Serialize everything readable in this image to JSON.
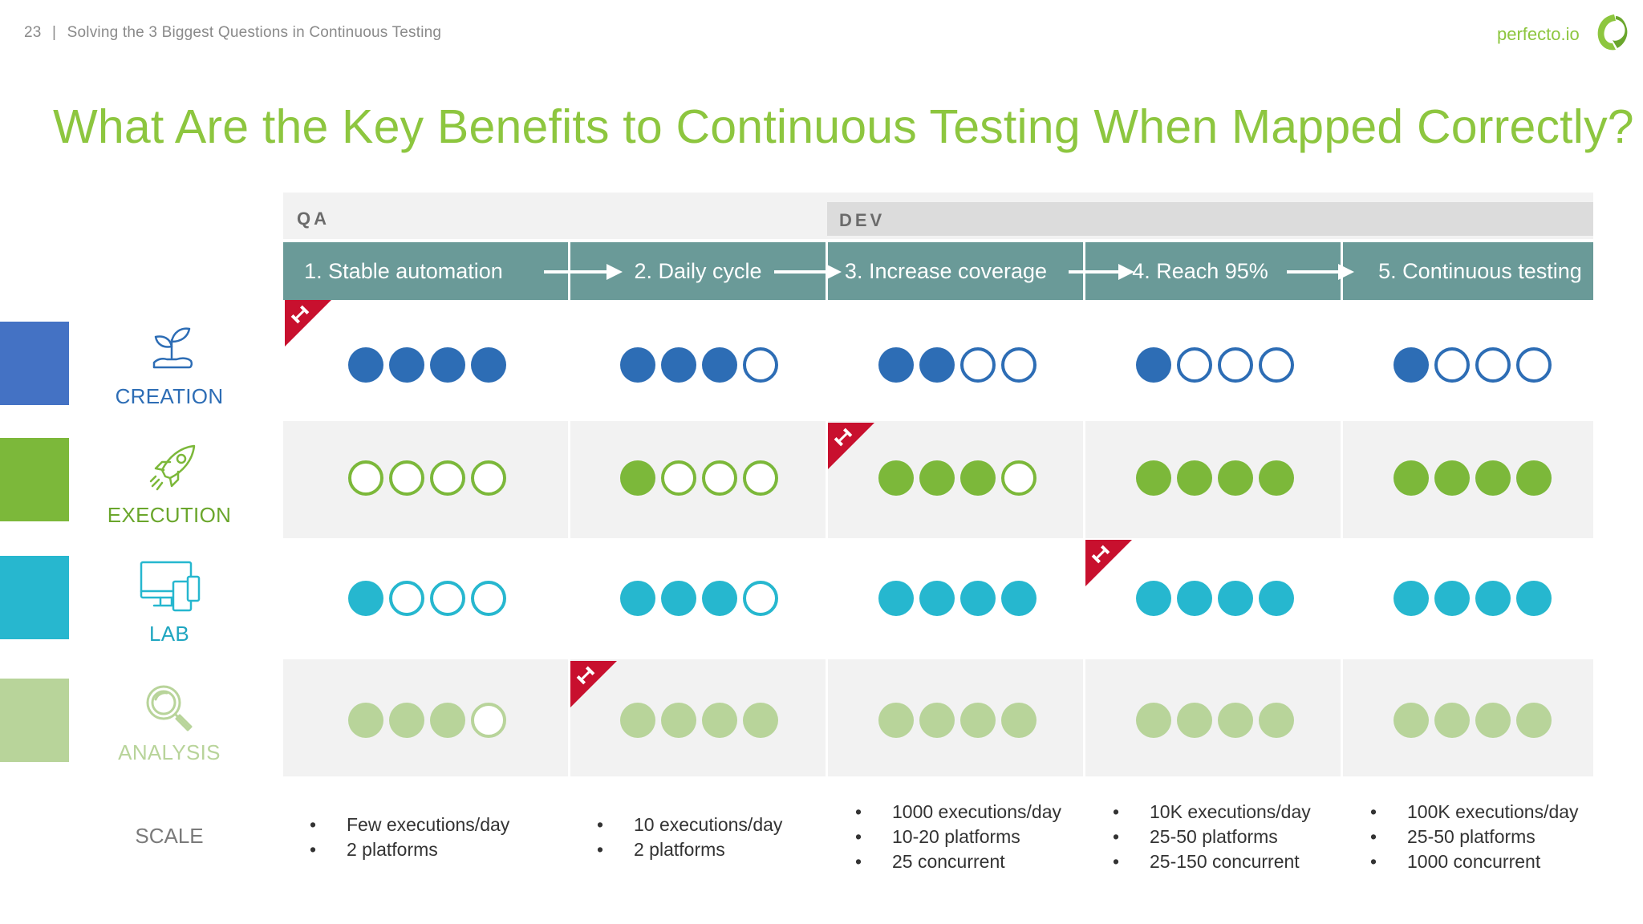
{
  "header": {
    "page_number": "23",
    "separator": "|",
    "deck_title": "Solving the 3 Biggest Questions in Continuous Testing",
    "brand": "perfecto.io"
  },
  "title": "What Are the Key Benefits to Continuous Testing When Mapped Correctly?",
  "phases": {
    "qa": "QA",
    "dev": "DEV"
  },
  "stages": [
    "1. Stable automation",
    "2. Daily cycle",
    "3. Increase coverage",
    "4. Reach 95%",
    "5. Continuous testing"
  ],
  "rows": [
    {
      "label": "CREATION",
      "icon": "sprout-in-hand-icon",
      "color": "#2d6db5",
      "label_color": "#2d6db5",
      "swatch": "#4472c4",
      "filled": [
        4,
        3,
        2,
        1,
        1
      ]
    },
    {
      "label": "EXECUTION",
      "icon": "rocket-icon",
      "color": "#7cb83a",
      "label_color": "#6aa62c",
      "swatch": "#7cb83a",
      "filled": [
        0,
        1,
        3,
        4,
        4
      ]
    },
    {
      "label": "LAB",
      "icon": "devices-icon",
      "color": "#26b7cf",
      "label_color": "#1fa6c0",
      "swatch": "#27b7cf",
      "filled": [
        1,
        3,
        4,
        4,
        4
      ]
    },
    {
      "label": "ANALYSIS",
      "icon": "magnifier-icon",
      "color": "#b8d49a",
      "label_color": "#b8d49a",
      "swatch": "#b8d49a",
      "filled": [
        3,
        4,
        4,
        4,
        4
      ]
    }
  ],
  "dots_per_cell": 4,
  "milestone_flags": [
    {
      "row": "CREATION",
      "stage": 1
    },
    {
      "row": "EXECUTION",
      "stage": 3
    },
    {
      "row": "LAB",
      "stage": 4
    },
    {
      "row": "ANALYSIS",
      "stage": 2
    }
  ],
  "flag_icon": "dumbbell-icon",
  "scale": {
    "label": "SCALE",
    "items": [
      [
        "Few executions/day",
        "2 platforms"
      ],
      [
        "10 executions/day",
        "2 platforms"
      ],
      [
        "1000 executions/day",
        "10-20 platforms",
        "25 concurrent"
      ],
      [
        "10K executions/day",
        "25-50 platforms",
        "25-150 concurrent"
      ],
      [
        "100K executions/day",
        "25-50 platforms",
        "1000 concurrent"
      ]
    ]
  }
}
